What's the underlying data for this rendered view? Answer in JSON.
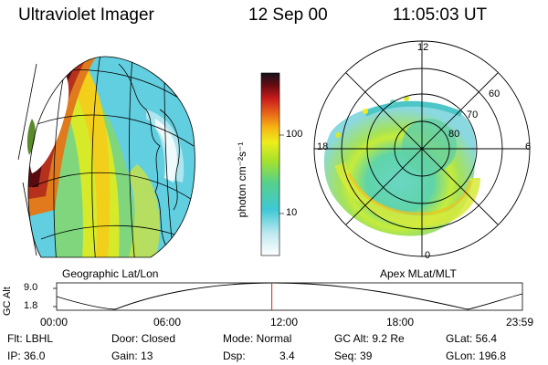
{
  "header": {
    "instrument": "Ultraviolet Imager",
    "date": "12 Sep 00",
    "time": "11:05:03 UT"
  },
  "left_panel": {
    "label": "Geographic Lat/Lon"
  },
  "right_panel": {
    "label": "Apex MLat/MLT",
    "mlt_labels": [
      "12",
      "18",
      "6",
      "0"
    ],
    "mlat_labels": [
      "60",
      "70",
      "80"
    ]
  },
  "colorbar": {
    "unit_label": "photon cm⁻²s⁻¹",
    "tick_labels": [
      "100",
      "10"
    ],
    "scale": "log"
  },
  "orbit": {
    "ylabel": "GC Alt",
    "yticks": [
      "9.0",
      "1.8"
    ],
    "time_ticks": [
      "00:00",
      "06:00",
      "12:00",
      "18:00",
      "23:59"
    ],
    "current_time_fraction": 0.462
  },
  "info": {
    "flt": "Flt: LBHL",
    "ip": "IP: 36.0",
    "door": "Door: Closed",
    "gain": "Gain: 13",
    "mode": "Mode: Normal",
    "dsp_label": "Dsp:",
    "dsp_value": "3.4",
    "gc_alt": "GC Alt: 9.2 Re",
    "seq": "Seq: 39",
    "glat": "GLat:  56.4",
    "glon": "GLon: 196.8"
  }
}
